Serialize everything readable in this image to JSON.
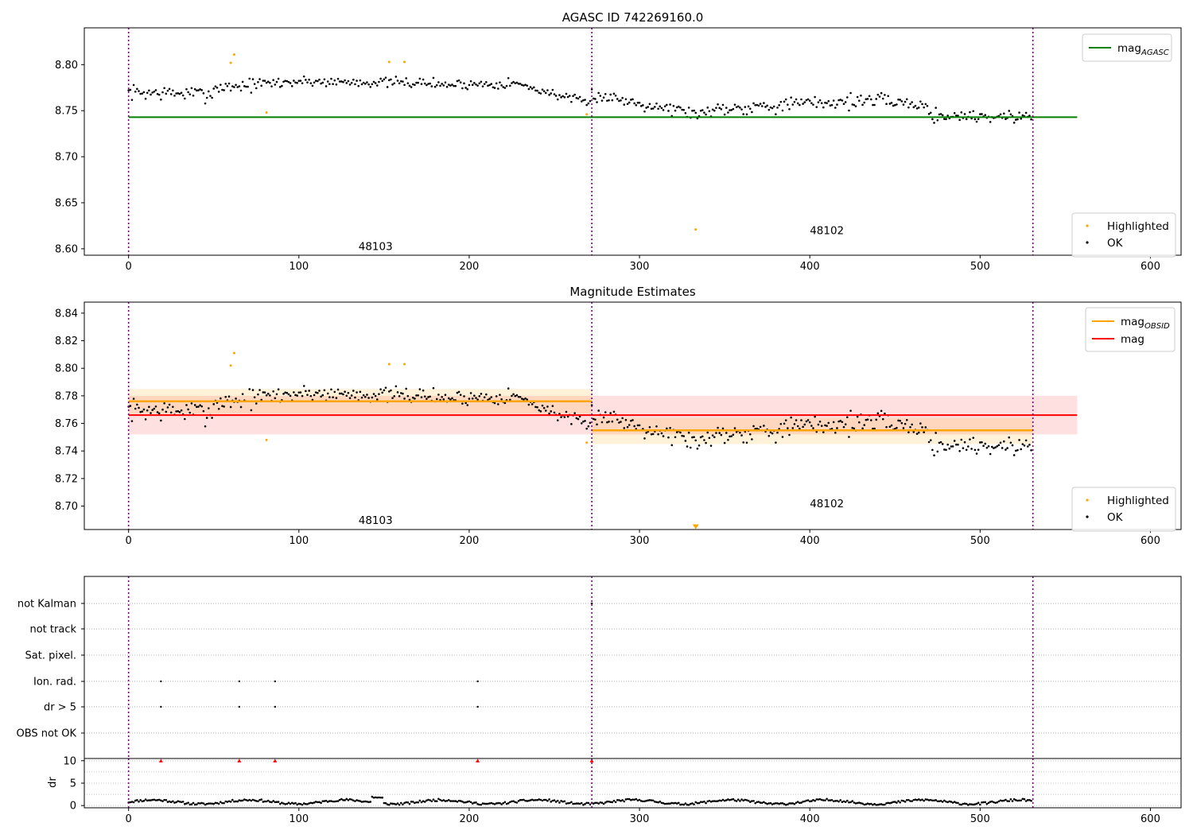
{
  "chart_data": [
    {
      "type": "scatter",
      "title": "AGASC ID 742269160.0",
      "xlim": [
        -26,
        618
      ],
      "ylim": [
        8.593,
        8.84
      ],
      "xticks": [
        "0",
        "100",
        "200",
        "300",
        "400",
        "500",
        "600"
      ],
      "yticks": [
        "8.60",
        "8.65",
        "8.70",
        "8.75",
        "8.80"
      ],
      "obsid_boundaries": [
        0,
        272,
        531
      ],
      "obsid_labels": [
        {
          "text": "48103",
          "x": 135,
          "y": 8.603
        },
        {
          "text": "48102",
          "x": 400,
          "y": 8.62
        }
      ],
      "mag_agasc": 8.743,
      "highlighted": [
        [
          60,
          8.802
        ],
        [
          62,
          8.811
        ],
        [
          81,
          8.748
        ],
        [
          153,
          8.803
        ],
        [
          162,
          8.803
        ],
        [
          269,
          8.746
        ],
        [
          333,
          8.621
        ]
      ],
      "ok_segments": [
        {
          "x0": 0,
          "x1": 50,
          "y0": 8.77,
          "y1": 8.768,
          "amp": 0.009
        },
        {
          "x0": 50,
          "x1": 100,
          "y0": 8.775,
          "y1": 8.782,
          "amp": 0.008
        },
        {
          "x0": 100,
          "x1": 180,
          "y0": 8.782,
          "y1": 8.78,
          "amp": 0.006
        },
        {
          "x0": 180,
          "x1": 230,
          "y0": 8.778,
          "y1": 8.78,
          "amp": 0.006
        },
        {
          "x0": 230,
          "x1": 272,
          "y0": 8.778,
          "y1": 8.757,
          "amp": 0.005
        },
        {
          "x0": 272,
          "x1": 340,
          "y0": 8.768,
          "y1": 8.745,
          "amp": 0.008
        },
        {
          "x0": 340,
          "x1": 440,
          "y0": 8.752,
          "y1": 8.762,
          "amp": 0.009
        },
        {
          "x0": 440,
          "x1": 470,
          "y0": 8.762,
          "y1": 8.755,
          "amp": 0.007
        },
        {
          "x0": 470,
          "x1": 531,
          "y0": 8.745,
          "y1": 8.743,
          "amp": 0.008
        }
      ],
      "legend_top": [
        {
          "label": "mag",
          "sub": "AGASC",
          "color": "#008000"
        }
      ],
      "legend_bottom": [
        {
          "label": "Highlighted",
          "color": "#ffa500"
        },
        {
          "label": "OK",
          "color": "#000000"
        }
      ]
    },
    {
      "type": "scatter",
      "title": "Magnitude Estimates",
      "xlim": [
        -26,
        618
      ],
      "ylim": [
        8.683,
        8.848
      ],
      "xticks": [
        "0",
        "100",
        "200",
        "300",
        "400",
        "500",
        "600"
      ],
      "yticks": [
        "8.70",
        "8.72",
        "8.74",
        "8.76",
        "8.78",
        "8.80",
        "8.82",
        "8.84"
      ],
      "obsid_boundaries": [
        0,
        272,
        531
      ],
      "obsid_labels": [
        {
          "text": "48103",
          "x": 135,
          "y": 8.69
        },
        {
          "text": "48102",
          "x": 400,
          "y": 8.702
        }
      ],
      "mag": {
        "value": 8.766,
        "low": 8.752,
        "high": 8.78,
        "x0": 0,
        "x1": 557
      },
      "mag_obsid": [
        {
          "value": 8.776,
          "low": 8.767,
          "high": 8.785,
          "x0": 0,
          "x1": 272
        },
        {
          "value": 8.755,
          "low": 8.745,
          "high": 8.764,
          "x0": 272,
          "x1": 531
        }
      ],
      "highlighted": [
        [
          60,
          8.802
        ],
        [
          62,
          8.811
        ],
        [
          81,
          8.748
        ],
        [
          153,
          8.803
        ],
        [
          162,
          8.803
        ],
        [
          269,
          8.746
        ]
      ],
      "offscale_marker": [
        333,
        8.685
      ],
      "legend_top": [
        {
          "label": "mag",
          "sub": "OBSID",
          "color": "#ffa500"
        },
        {
          "label": "mag",
          "sub": "",
          "color": "#ff0000"
        }
      ],
      "legend_bottom": [
        {
          "label": "Highlighted",
          "color": "#ffa500"
        },
        {
          "label": "OK",
          "color": "#000000"
        }
      ]
    },
    {
      "type": "scatter",
      "xlim": [
        -26,
        618
      ],
      "xticks": [
        "0",
        "100",
        "200",
        "300",
        "400",
        "500",
        "600"
      ],
      "flag_labels": [
        "not Kalman",
        "not track",
        "Sat. pixel.",
        "Ion. rad.",
        "dr > 5",
        "OBS not OK"
      ],
      "flag_points": [
        {
          "flag": "not Kalman",
          "x": [
            272
          ]
        },
        {
          "flag": "Ion. rad.",
          "x": [
            19,
            65,
            86,
            205
          ]
        },
        {
          "flag": "dr > 5",
          "x": [
            19,
            65,
            86,
            205
          ]
        }
      ],
      "dr": {
        "ylabel": "dr",
        "yticks": [
          "0",
          "5",
          "10"
        ],
        "ylim": [
          -0.5,
          10.5
        ],
        "outliers_x": [
          19,
          65,
          86,
          205,
          272
        ],
        "outliers_color": "#ff0000"
      }
    }
  ]
}
